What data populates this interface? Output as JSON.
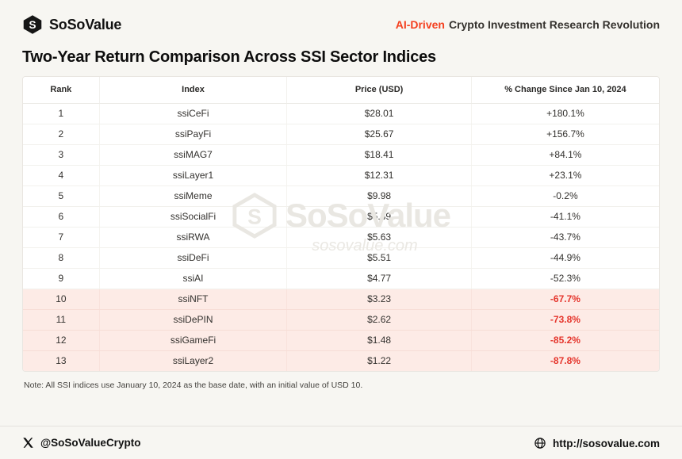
{
  "header": {
    "brand": "SoSoValue",
    "tagline_highlight": "AI-Driven",
    "tagline_rest": "Crypto Investment Research Revolution"
  },
  "title": "Two-Year Return Comparison Across SSI Sector Indices",
  "chart_data": {
    "type": "table",
    "title": "Two-Year Return Comparison Across SSI Sector Indices",
    "columns": [
      "Rank",
      "Index",
      "Price (USD)",
      "% Change Since Jan 10, 2024"
    ],
    "rows": [
      {
        "rank": "1",
        "index": "ssiCeFi",
        "price": "$28.01",
        "change": "+180.1%",
        "highlight": false
      },
      {
        "rank": "2",
        "index": "ssiPayFi",
        "price": "$25.67",
        "change": "+156.7%",
        "highlight": false
      },
      {
        "rank": "3",
        "index": "ssiMAG7",
        "price": "$18.41",
        "change": "+84.1%",
        "highlight": false
      },
      {
        "rank": "4",
        "index": "ssiLayer1",
        "price": "$12.31",
        "change": "+23.1%",
        "highlight": false
      },
      {
        "rank": "5",
        "index": "ssiMeme",
        "price": "$9.98",
        "change": "-0.2%",
        "highlight": false
      },
      {
        "rank": "6",
        "index": "ssiSocialFi",
        "price": "$5.89",
        "change": "-41.1%",
        "highlight": false
      },
      {
        "rank": "7",
        "index": "ssiRWA",
        "price": "$5.63",
        "change": "-43.7%",
        "highlight": false
      },
      {
        "rank": "8",
        "index": "ssiDeFi",
        "price": "$5.51",
        "change": "-44.9%",
        "highlight": false
      },
      {
        "rank": "9",
        "index": "ssiAI",
        "price": "$4.77",
        "change": "-52.3%",
        "highlight": false
      },
      {
        "rank": "10",
        "index": "ssiNFT",
        "price": "$3.23",
        "change": "-67.7%",
        "highlight": true
      },
      {
        "rank": "11",
        "index": "ssiDePIN",
        "price": "$2.62",
        "change": "-73.8%",
        "highlight": true
      },
      {
        "rank": "12",
        "index": "ssiGameFi",
        "price": "$1.48",
        "change": "-85.2%",
        "highlight": true
      },
      {
        "rank": "13",
        "index": "ssiLayer2",
        "price": "$1.22",
        "change": "-87.8%",
        "highlight": true
      }
    ],
    "base_note": "Base date Jan 10, 2024, initial value USD 10"
  },
  "watermark": {
    "brand": "SoSoValue",
    "domain": "sosovalue.com"
  },
  "note": "Note: All SSI indices use January 10, 2024 as the base date, with an initial value of USD 10.",
  "footer": {
    "twitter": "@SoSoValueCrypto",
    "site": "http://sosovalue.com"
  },
  "colors": {
    "accent": "#f4401f",
    "negative": "#e5352c",
    "highlight_bg": "#fdebe6",
    "background": "#f7f6f2"
  }
}
